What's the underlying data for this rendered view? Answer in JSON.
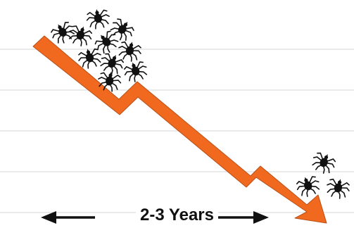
{
  "caption": "2-3 Years",
  "colors": {
    "arrow": "#f0691e",
    "arrow_outline": "#b8501a",
    "tick": "#111111",
    "gridline": "#e4e4e4"
  },
  "icons": {
    "arrow": "down-trend-arrow-icon",
    "tick": "tick-bug-icon",
    "timeline": "double-headed-arrow-icon"
  }
}
